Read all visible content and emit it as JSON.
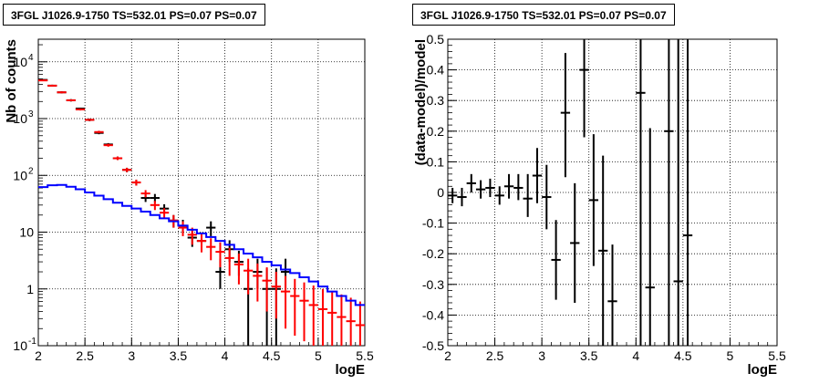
{
  "chart_data": [
    {
      "type": "scatter",
      "title": "3FGL J1026.9-1750 TS=532.01 PS=0.07 PS=0.07",
      "xlabel": "logE",
      "ylabel": "Nb of counts",
      "xlim": [
        2,
        5.5
      ],
      "ylim": [
        0.1,
        25000
      ],
      "yscale": "log",
      "grid": true,
      "x_ticks": [
        "2",
        "2.5",
        "3",
        "3.5",
        "4",
        "4.5",
        "5",
        "5.5"
      ],
      "y_ticks": [
        {
          "value": 0.1,
          "label": "10",
          "exp": "-1"
        },
        {
          "value": 1,
          "label": "1",
          "exp": ""
        },
        {
          "value": 10,
          "label": "10",
          "exp": ""
        },
        {
          "value": 100,
          "label": "10",
          "exp": "2"
        },
        {
          "value": 1000,
          "label": "10",
          "exp": "3"
        },
        {
          "value": 10000,
          "label": "10",
          "exp": "4"
        }
      ],
      "bin_edges": [
        2.0,
        2.1,
        2.2,
        2.3,
        2.4,
        2.5,
        2.6,
        2.7,
        2.8,
        2.9,
        3.0,
        3.1,
        3.2,
        3.3,
        3.4,
        3.5,
        3.6,
        3.7,
        3.8,
        3.9,
        4.0,
        4.1,
        4.2,
        4.3,
        4.4,
        4.5,
        4.6,
        4.7,
        4.8,
        4.9,
        5.0,
        5.1,
        5.2,
        5.3,
        5.4,
        5.5
      ],
      "series": [
        {
          "color": "#000000",
          "x": [
            2.05,
            2.15,
            2.25,
            2.35,
            2.45,
            2.55,
            2.65,
            2.75,
            2.85,
            2.95,
            3.05,
            3.15,
            3.25,
            3.35,
            3.45,
            3.55,
            3.65,
            3.75,
            3.85,
            3.95,
            4.05,
            4.15,
            4.25,
            4.35,
            4.45,
            4.55,
            4.65
          ],
          "y": [
            4800,
            3800,
            2900,
            2100,
            1500,
            950,
            560,
            350,
            200,
            125,
            75,
            40,
            40,
            26,
            16,
            13,
            8,
            7,
            12,
            2,
            5,
            3,
            1,
            2,
            1,
            1,
            2
          ],
          "y_low": [
            4650,
            3650,
            2780,
            2000,
            1440,
            900,
            530,
            330,
            186,
            114,
            66,
            34,
            33,
            21,
            12,
            9.5,
            5.5,
            4.5,
            8.5,
            1,
            3,
            1.7,
            0.1,
            1,
            0.1,
            0.1,
            1
          ],
          "y_high": [
            4950,
            3950,
            3020,
            2200,
            1560,
            1000,
            590,
            370,
            214,
            136,
            84,
            46,
            47,
            31,
            20,
            16.5,
            10.5,
            9.5,
            15.5,
            3.4,
            7.2,
            4.7,
            2.3,
            3.4,
            2.3,
            2.3,
            3.4
          ]
        },
        {
          "color": "#ff0000",
          "x": [
            2.05,
            2.15,
            2.25,
            2.35,
            2.45,
            2.55,
            2.65,
            2.75,
            2.85,
            2.95,
            3.05,
            3.15,
            3.25,
            3.35,
            3.45,
            3.55,
            3.65,
            3.75,
            3.85,
            3.95,
            4.05,
            4.15,
            4.25,
            4.35,
            4.45,
            4.55,
            4.65,
            4.75,
            4.85,
            4.95,
            5.05,
            5.15,
            5.25,
            5.35,
            5.45
          ],
          "y": [
            4700,
            3800,
            2900,
            2100,
            1450,
            950,
            580,
            340,
            200,
            125,
            75,
            48,
            30,
            22,
            16,
            12,
            9,
            7,
            5.5,
            4.5,
            3.5,
            2.7,
            2.1,
            1.7,
            1.4,
            1.1,
            0.9,
            0.75,
            0.62,
            0.52,
            0.44,
            0.38,
            0.32,
            0.27,
            0.23
          ],
          "y_low": [
            4560,
            3680,
            2800,
            2020,
            1390,
            910,
            550,
            320,
            186,
            114,
            66,
            41,
            24.5,
            17.5,
            12,
            8.5,
            6,
            4.4,
            3.2,
            2.4,
            1.7,
            1.2,
            0.8,
            0.6,
            0.4,
            0.3,
            0.2,
            0.15,
            0.12,
            0.1,
            0.1,
            0.1,
            0.1,
            0.1,
            0.1
          ],
          "y_high": [
            4840,
            3920,
            3000,
            2180,
            1510,
            990,
            610,
            360,
            214,
            136,
            84,
            55,
            35.5,
            26.5,
            20,
            15.5,
            12,
            9.6,
            7.8,
            6.6,
            5.3,
            4.2,
            3.4,
            2.8,
            2.4,
            2.0,
            1.7,
            1.5,
            1.3,
            1.15,
            1.0,
            0.9,
            0.8,
            0.7,
            0.6
          ]
        },
        {
          "color": "#0000ff",
          "type": "step",
          "y": [
            62,
            67,
            68,
            63,
            57,
            50,
            44,
            38,
            33,
            29,
            26,
            23,
            20,
            17.5,
            15.5,
            13,
            11,
            9.5,
            8.2,
            7,
            6,
            5,
            4.2,
            3.6,
            3.0,
            2.6,
            2.2,
            1.9,
            1.6,
            1.35,
            1.1,
            0.9,
            0.75,
            0.62,
            0.52
          ]
        }
      ]
    },
    {
      "type": "scatter",
      "title": "3FGL J1026.9-1750 TS=532.01 PS=0.07 PS=0.07",
      "xlabel": "logE",
      "ylabel": "(data-model)/model",
      "xlim": [
        2,
        5.5
      ],
      "ylim": [
        -0.5,
        0.5
      ],
      "grid": true,
      "x_ticks": [
        "2",
        "2.5",
        "3",
        "3.5",
        "4",
        "4.5",
        "5",
        "5.5"
      ],
      "y_ticks": [
        "-0.5",
        "-0.4",
        "-0.3",
        "-0.2",
        "-0.1",
        "0",
        "0.1",
        "0.2",
        "0.3",
        "0.4",
        "0.5"
      ],
      "series": [
        {
          "color": "#000000",
          "x": [
            2.05,
            2.15,
            2.25,
            2.35,
            2.45,
            2.55,
            2.65,
            2.75,
            2.85,
            2.95,
            3.05,
            3.15,
            3.25,
            3.35,
            3.45,
            3.55,
            3.65,
            3.75,
            4.05,
            4.15,
            4.35,
            4.45,
            4.55
          ],
          "y": [
            -0.01,
            -0.015,
            0.03,
            0.01,
            0.015,
            -0.01,
            0.02,
            0.015,
            -0.02,
            0.055,
            -0.015,
            -0.22,
            0.26,
            -0.165,
            0.4,
            -0.025,
            -0.19,
            -0.355,
            0.325,
            -0.31,
            0.2,
            -0.29,
            -0.14
          ],
          "y_low": [
            -0.035,
            -0.045,
            0.0,
            -0.02,
            -0.015,
            -0.04,
            -0.02,
            -0.025,
            -0.08,
            -0.035,
            -0.12,
            -0.35,
            0.05,
            -0.36,
            0.18,
            -0.24,
            -0.5,
            -0.5,
            -0.5,
            -0.5,
            -0.5,
            -0.5,
            -0.5
          ],
          "y_high": [
            0.015,
            0.015,
            0.06,
            0.04,
            0.045,
            0.02,
            0.06,
            0.06,
            0.06,
            0.145,
            0.09,
            -0.09,
            0.455,
            0.03,
            0.5,
            0.19,
            0.12,
            -0.17,
            0.5,
            0.21,
            0.5,
            0.5,
            0.5
          ]
        }
      ]
    }
  ]
}
